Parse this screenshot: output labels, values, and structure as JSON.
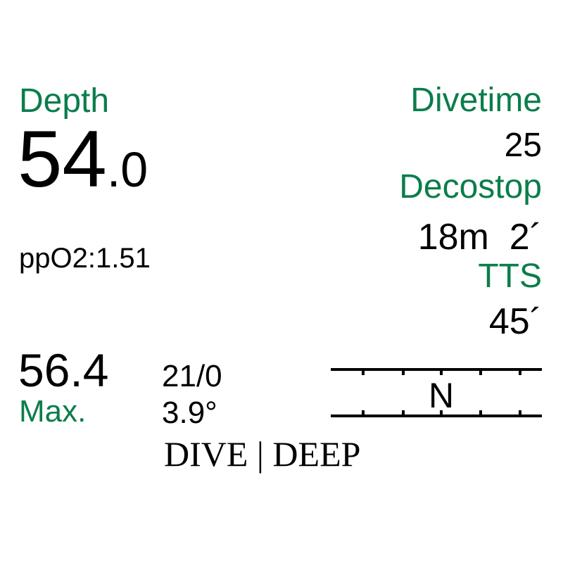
{
  "depth": {
    "label": "Depth",
    "value_int": "54",
    "value_dec": ".0"
  },
  "ppo2": "ppO2:1.51",
  "max": {
    "value": "56.4",
    "label": "Max."
  },
  "gas": "21/0",
  "temperature": "3.9°",
  "divetime": {
    "label": "Divetime",
    "value": "25"
  },
  "decostop": {
    "label": "Decostop",
    "value": "18m  2´"
  },
  "tts": {
    "label": "TTS",
    "value": "45´"
  },
  "compass": {
    "heading": "N"
  },
  "mode": "DIVE | DEEP",
  "colors": {
    "label_green": "#0b7d4b",
    "text": "#000000",
    "background": "#ffffff"
  }
}
